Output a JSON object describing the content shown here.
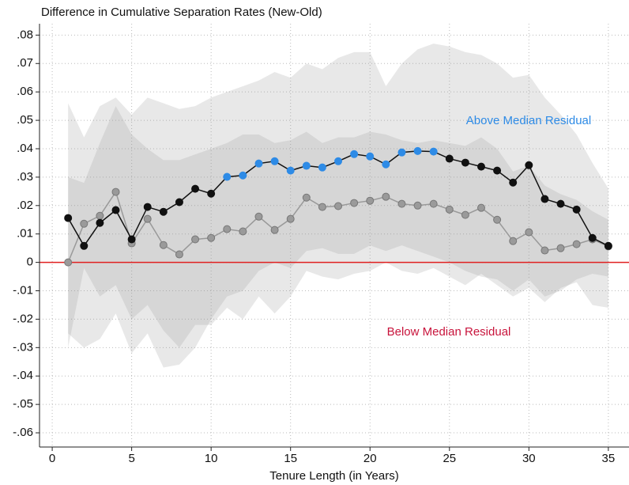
{
  "chart_data": {
    "type": "line",
    "title": "Difference in Cumulative Separation Rates (New-Old)",
    "x_label": "Tenure Length (in Years)",
    "x": [
      1,
      2,
      3,
      4,
      5,
      6,
      7,
      8,
      9,
      10,
      11,
      12,
      13,
      14,
      15,
      16,
      17,
      18,
      19,
      20,
      21,
      22,
      23,
      24,
      25,
      26,
      27,
      28,
      29,
      30,
      31,
      32,
      33,
      34,
      35
    ],
    "series": [
      {
        "color": "#999999",
        "band_color": "rgba(150,150,150,0.22)",
        "values": [
          0.0,
          0.0136,
          0.0164,
          0.0248,
          0.0067,
          0.0153,
          0.0061,
          0.0028,
          0.0081,
          0.0086,
          0.0117,
          0.0109,
          0.0161,
          0.0114,
          0.0153,
          0.0228,
          0.0195,
          0.0198,
          0.0209,
          0.0217,
          0.0231,
          0.0206,
          0.02,
          0.0206,
          0.0186,
          0.0167,
          0.0192,
          0.015,
          0.0075,
          0.0106,
          0.0042,
          0.005,
          0.0064,
          0.0081,
          0.0056
        ],
        "upper": [
          0.03,
          0.028,
          0.042,
          0.055,
          0.045,
          0.04,
          0.036,
          0.036,
          0.038,
          0.04,
          0.042,
          0.045,
          0.045,
          0.042,
          0.043,
          0.046,
          0.042,
          0.044,
          0.044,
          0.046,
          0.045,
          0.043,
          0.042,
          0.043,
          0.042,
          0.041,
          0.044,
          0.04,
          0.032,
          0.034,
          0.027,
          0.024,
          0.022,
          0.018,
          0.015
        ],
        "lower": [
          -0.03,
          -0.002,
          -0.012,
          -0.008,
          -0.02,
          -0.015,
          -0.024,
          -0.03,
          -0.022,
          -0.022,
          -0.016,
          -0.02,
          -0.012,
          -0.018,
          -0.012,
          -0.003,
          -0.005,
          -0.006,
          -0.004,
          -0.003,
          0.0,
          -0.003,
          -0.004,
          -0.002,
          -0.005,
          -0.008,
          -0.004,
          -0.008,
          -0.012,
          -0.009,
          -0.014,
          -0.009,
          -0.007,
          -0.015,
          -0.016
        ],
        "point_colors": [
          "#9a9a9a",
          "#9a9a9a",
          "#9a9a9a",
          "#9a9a9a",
          "#9a9a9a",
          "#9a9a9a",
          "#9a9a9a",
          "#9a9a9a",
          "#9a9a9a",
          "#9a9a9a",
          "#9a9a9a",
          "#9a9a9a",
          "#9a9a9a",
          "#9a9a9a",
          "#9a9a9a",
          "#9a9a9a",
          "#9a9a9a",
          "#9a9a9a",
          "#9a9a9a",
          "#9a9a9a",
          "#9a9a9a",
          "#9a9a9a",
          "#9a9a9a",
          "#9a9a9a",
          "#9a9a9a",
          "#9a9a9a",
          "#9a9a9a",
          "#9a9a9a",
          "#9a9a9a",
          "#9a9a9a",
          "#9a9a9a",
          "#9a9a9a",
          "#9a9a9a",
          "#9a9a9a",
          "#9a9a9a"
        ]
      },
      {
        "color": "#111111",
        "band_color": "rgba(150,150,150,0.22)",
        "values": [
          0.0156,
          0.0058,
          0.0139,
          0.0184,
          0.0081,
          0.0195,
          0.0178,
          0.0212,
          0.0259,
          0.0242,
          0.0301,
          0.0306,
          0.0348,
          0.0356,
          0.0323,
          0.034,
          0.0334,
          0.0356,
          0.0381,
          0.0373,
          0.0345,
          0.0387,
          0.0392,
          0.039,
          0.0365,
          0.0351,
          0.0337,
          0.0323,
          0.0281,
          0.0342,
          0.0223,
          0.0206,
          0.0186,
          0.0086,
          0.0058
        ],
        "upper": [
          0.056,
          0.044,
          0.055,
          0.058,
          0.052,
          0.058,
          0.056,
          0.054,
          0.055,
          0.058,
          0.06,
          0.062,
          0.064,
          0.067,
          0.065,
          0.07,
          0.068,
          0.072,
          0.074,
          0.074,
          0.062,
          0.07,
          0.075,
          0.077,
          0.076,
          0.074,
          0.073,
          0.07,
          0.065,
          0.066,
          0.058,
          0.052,
          0.045,
          0.035,
          0.026
        ],
        "lower": [
          -0.025,
          -0.03,
          -0.027,
          -0.018,
          -0.032,
          -0.025,
          -0.037,
          -0.036,
          -0.03,
          -0.02,
          -0.012,
          -0.01,
          -0.003,
          0.0,
          -0.002,
          0.004,
          0.005,
          0.003,
          0.003,
          0.006,
          0.004,
          0.006,
          0.004,
          0.002,
          0.0,
          -0.003,
          -0.005,
          -0.006,
          -0.01,
          -0.006,
          -0.012,
          -0.01,
          -0.006,
          -0.004,
          -0.005
        ],
        "point_colors": [
          "#111111",
          "#111111",
          "#111111",
          "#111111",
          "#111111",
          "#111111",
          "#111111",
          "#111111",
          "#111111",
          "#111111",
          "#2e8be6",
          "#2e8be6",
          "#2e8be6",
          "#2e8be6",
          "#2e8be6",
          "#2e8be6",
          "#2e8be6",
          "#2e8be6",
          "#2e8be6",
          "#2e8be6",
          "#2e8be6",
          "#2e8be6",
          "#2e8be6",
          "#2e8be6",
          "#111111",
          "#111111",
          "#111111",
          "#111111",
          "#111111",
          "#111111",
          "#111111",
          "#111111",
          "#111111",
          "#111111",
          "#111111"
        ]
      }
    ],
    "annotations": [
      {
        "text": "Above Median Residual",
        "color": "#2e8be6"
      },
      {
        "text": "Below Median Residual",
        "color": "#c8143c"
      }
    ],
    "hline": 0,
    "hline_color": "#e02020",
    "xlim": [
      -0.8,
      36.3
    ],
    "ylim": [
      -0.065,
      0.084
    ],
    "xticks": [
      0,
      5,
      10,
      15,
      20,
      25,
      30,
      35
    ],
    "yticks": [
      {
        "value": 0.08,
        "label": ".08"
      },
      {
        "value": 0.07,
        "label": ".07"
      },
      {
        "value": 0.06,
        "label": ".06"
      },
      {
        "value": 0.05,
        "label": ".05"
      },
      {
        "value": 0.04,
        "label": ".04"
      },
      {
        "value": 0.03,
        "label": ".03"
      },
      {
        "value": 0.02,
        "label": ".02"
      },
      {
        "value": 0.01,
        "label": ".01"
      },
      0,
      {
        "value": -0.01,
        "label": "-.01"
      },
      {
        "value": -0.02,
        "label": "-.02"
      },
      {
        "value": -0.03,
        "label": "-.03"
      },
      {
        "value": -0.04,
        "label": "-.04"
      },
      {
        "value": -0.05,
        "label": "-.05"
      },
      {
        "value": -0.06,
        "label": "-.06"
      }
    ],
    "grid": true
  }
}
